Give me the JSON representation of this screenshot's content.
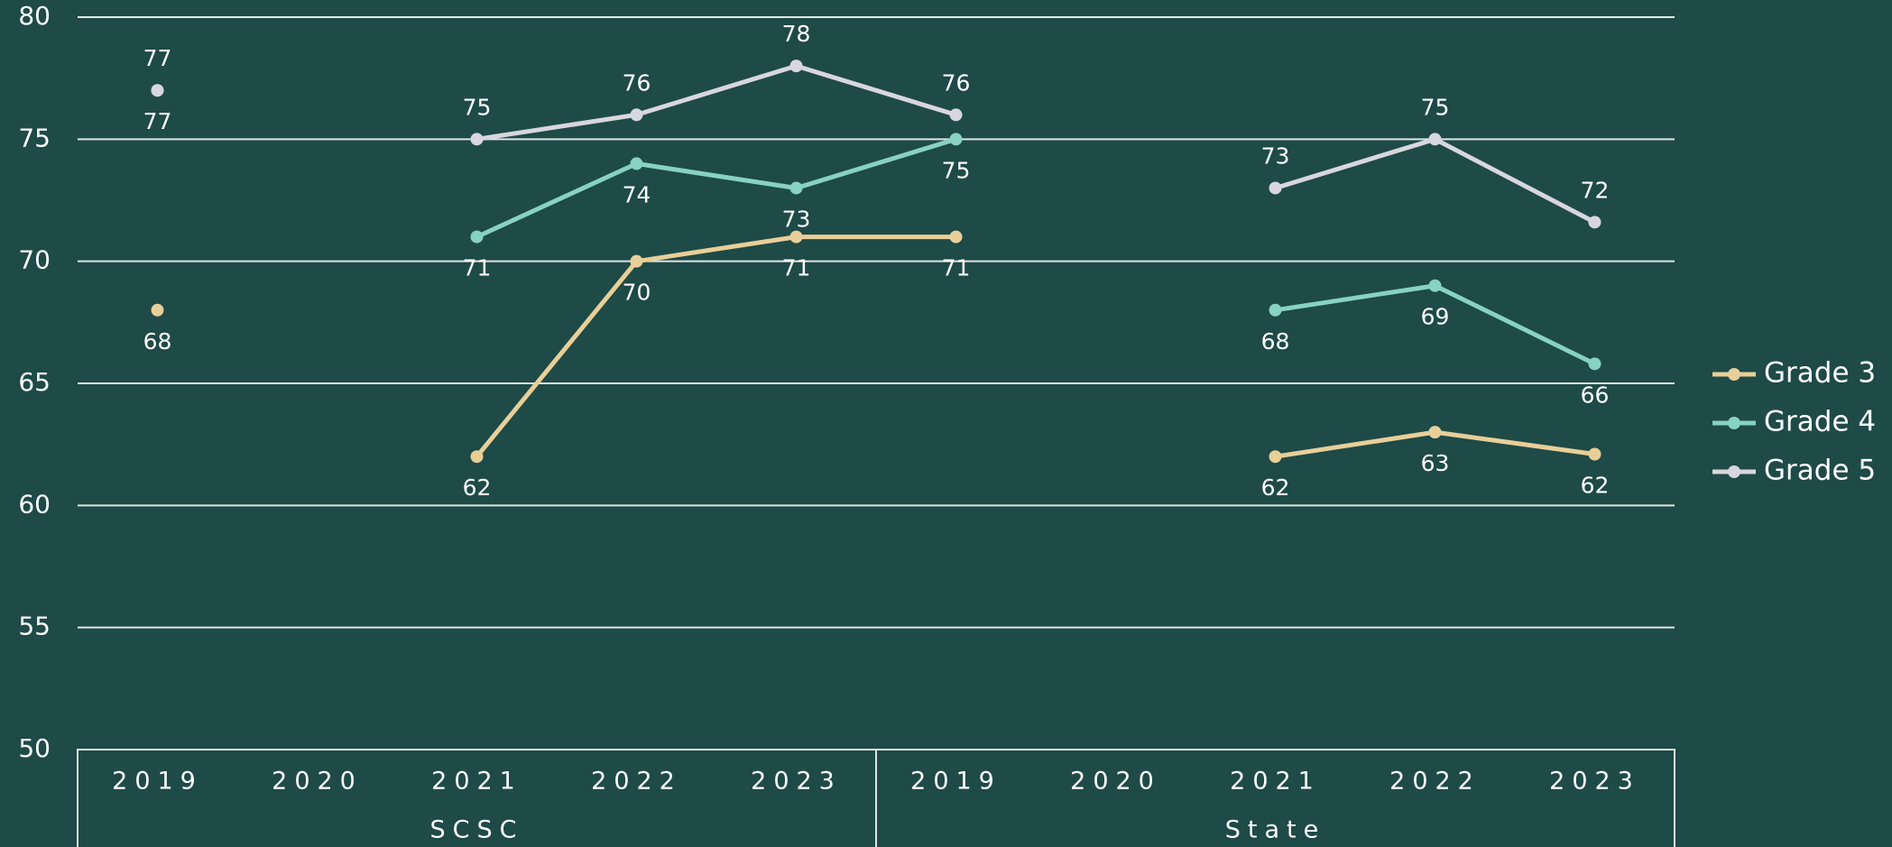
{
  "chart_data": {
    "type": "line",
    "categories": [
      "2019",
      "2020",
      "2021",
      "2022",
      "2023",
      "2019",
      "2020",
      "2021",
      "2022",
      "2023"
    ],
    "groups": [
      "SCSC",
      "State"
    ],
    "series": [
      {
        "name": "Grade 3",
        "color": "#e8cf98",
        "values": [
          68,
          null,
          62,
          70,
          71,
          71,
          null,
          62,
          63,
          62.1
        ],
        "value_labels": [
          "68",
          null,
          "62",
          "70",
          "71",
          "71",
          null,
          "62",
          "63",
          "62"
        ]
      },
      {
        "name": "Grade 4",
        "color": "#88d1c5",
        "values": [
          77,
          null,
          71,
          74,
          73,
          75,
          null,
          68,
          69,
          65.8
        ],
        "value_labels": [
          "77",
          null,
          "71",
          "74",
          "73",
          "75",
          null,
          "68",
          "69",
          "66"
        ]
      },
      {
        "name": "Grade 5",
        "color": "#d8d6e0",
        "values": [
          77,
          null,
          75,
          76,
          78,
          76,
          null,
          73,
          75,
          71.6
        ],
        "value_labels": [
          "77",
          null,
          "75",
          "76",
          "78",
          "76",
          null,
          "73",
          "75",
          "72"
        ]
      }
    ],
    "ylim": [
      50,
      80
    ],
    "yticks": [
      50,
      55,
      60,
      65,
      70,
      75,
      80
    ],
    "grid": true,
    "legend": "right"
  }
}
